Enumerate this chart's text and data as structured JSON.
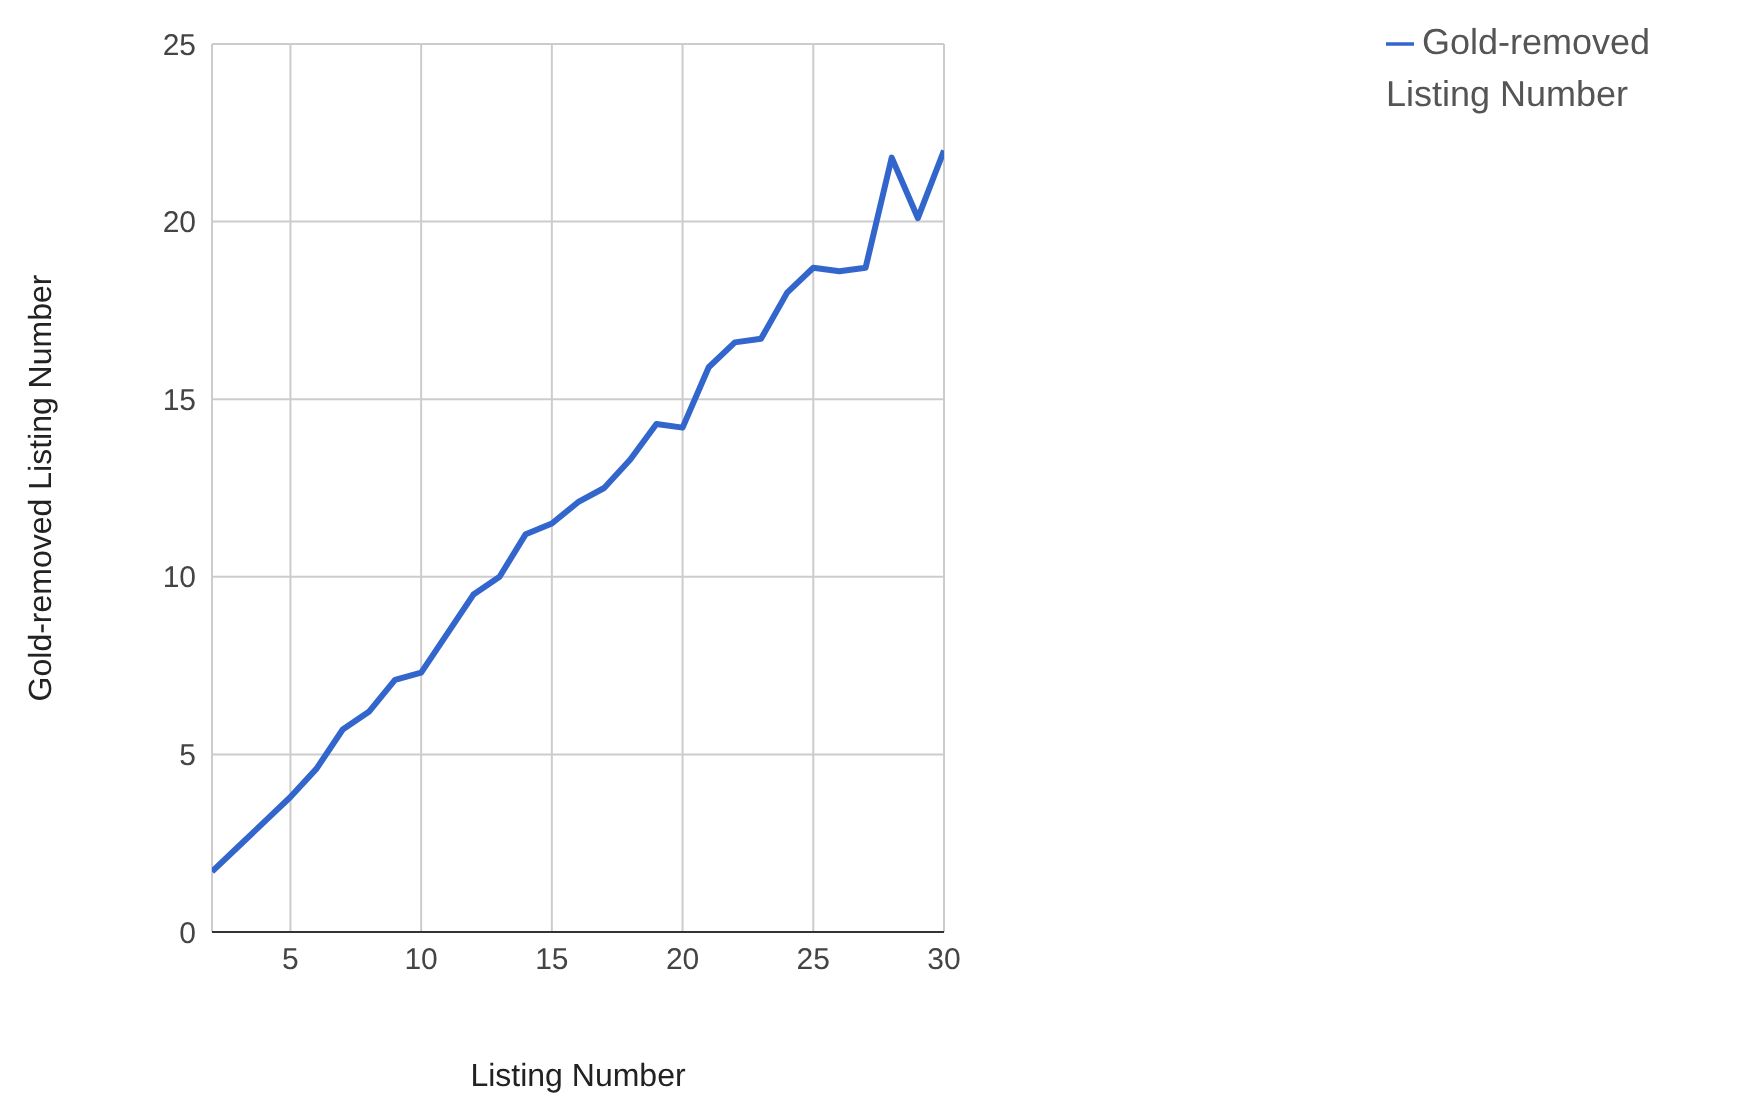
{
  "chart_data": {
    "type": "line",
    "xlabel": "Listing Number",
    "ylabel": "Gold-removed Listing Number",
    "x": [
      2,
      3,
      4,
      5,
      6,
      7,
      8,
      9,
      10,
      11,
      12,
      13,
      14,
      15,
      16,
      17,
      18,
      19,
      20,
      21,
      22,
      23,
      24,
      25,
      26,
      27,
      28,
      29,
      30
    ],
    "series": [
      {
        "name": "Gold-removed Listing Number",
        "color": "#3366cc",
        "values": [
          1.7,
          2.4,
          3.1,
          3.8,
          4.6,
          5.7,
          6.2,
          7.1,
          7.3,
          8.4,
          9.5,
          10.0,
          11.2,
          11.5,
          12.1,
          12.5,
          13.3,
          14.3,
          14.2,
          15.9,
          16.6,
          16.7,
          18.0,
          18.7,
          18.6,
          18.7,
          21.8,
          20.1,
          22.0
        ]
      }
    ],
    "xlim": [
      2,
      30
    ],
    "xticks": [
      5,
      10,
      15,
      20,
      25,
      30
    ],
    "ylim": [
      0,
      25
    ],
    "yticks": [
      0,
      5,
      10,
      15,
      20,
      25
    ],
    "grid": true,
    "legend": "top right",
    "marker": "none",
    "line_style": "solid"
  }
}
